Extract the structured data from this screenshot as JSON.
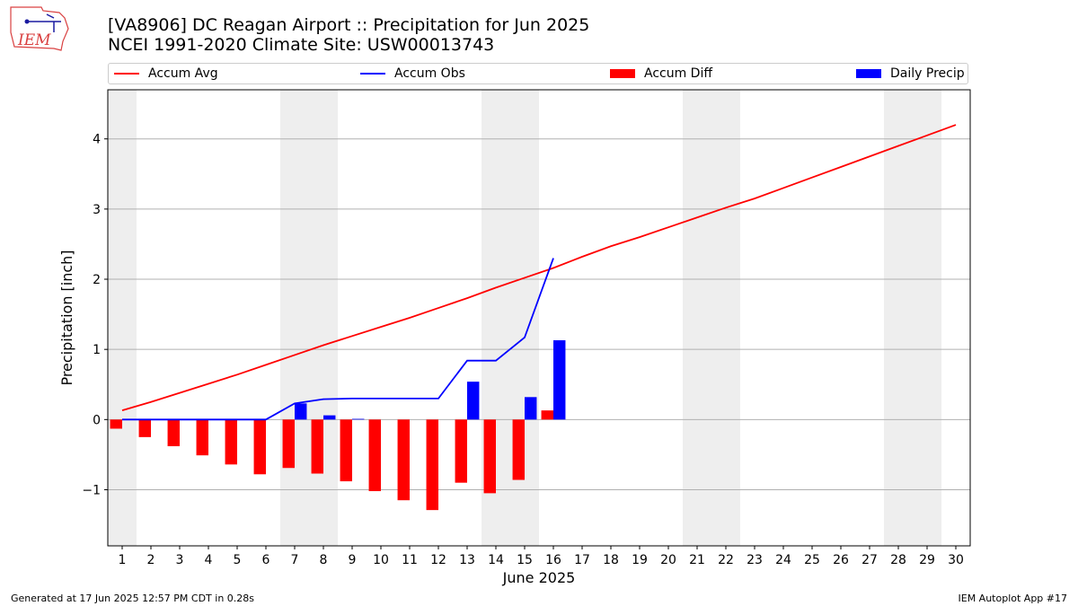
{
  "header": {
    "title_line1": "[VA8906] DC Reagan Airport :: Precipitation for Jun 2025",
    "title_line2": "NCEI 1991-2020 Climate Site: USW00013743",
    "logo_text": "IEM"
  },
  "footer": {
    "generated": "Generated at 17 Jun 2025 12:57 PM CDT in 0.28s",
    "app": "IEM Autoplot App #17"
  },
  "chart_data": {
    "type": "bar",
    "xlabel": "June 2025",
    "ylabel": "Precipitation [inch]",
    "xlim": [
      0.5,
      30.5
    ],
    "ylim": [
      -1.8,
      4.7
    ],
    "yticks": [
      -1,
      0,
      1,
      2,
      3,
      4
    ],
    "ytick_labels": [
      "−1",
      "0",
      "1",
      "2",
      "3",
      "4"
    ],
    "days": [
      1,
      2,
      3,
      4,
      5,
      6,
      7,
      8,
      9,
      10,
      11,
      12,
      13,
      14,
      15,
      16,
      17,
      18,
      19,
      20,
      21,
      22,
      23,
      24,
      25,
      26,
      27,
      28,
      29,
      30
    ],
    "weekend_shading": [
      [
        0.5,
        1.5
      ],
      [
        6.5,
        8.5
      ],
      [
        13.5,
        15.5
      ],
      [
        20.5,
        22.5
      ],
      [
        27.5,
        29.5
      ]
    ],
    "grid": "horizontal",
    "legend_placement": "top",
    "series": [
      {
        "name": "Accum Avg",
        "kind": "line",
        "color": "#ff0000",
        "x": [
          1,
          2,
          3,
          4,
          5,
          6,
          7,
          8,
          9,
          10,
          11,
          12,
          13,
          14,
          15,
          16,
          17,
          18,
          19,
          20,
          21,
          22,
          23,
          24,
          25,
          26,
          27,
          28,
          29,
          30
        ],
        "values": [
          0.13,
          0.25,
          0.38,
          0.51,
          0.64,
          0.78,
          0.92,
          1.06,
          1.19,
          1.32,
          1.45,
          1.59,
          1.73,
          1.88,
          2.02,
          2.16,
          2.32,
          2.47,
          2.6,
          2.74,
          2.88,
          3.02,
          3.15,
          3.3,
          3.45,
          3.6,
          3.75,
          3.9,
          4.05,
          4.2
        ]
      },
      {
        "name": "Accum Obs",
        "kind": "line",
        "color": "#0000ff",
        "x": [
          1,
          2,
          3,
          4,
          5,
          6,
          7,
          8,
          9,
          10,
          11,
          12,
          13,
          14,
          15,
          16
        ],
        "values": [
          0,
          0,
          0,
          0,
          0,
          0,
          0.23,
          0.29,
          0.3,
          0.3,
          0.3,
          0.3,
          0.84,
          0.84,
          1.17,
          2.3
        ]
      },
      {
        "name": "Accum Diff",
        "kind": "bar",
        "color": "#ff0000",
        "x": [
          1,
          2,
          3,
          4,
          5,
          6,
          7,
          8,
          9,
          10,
          11,
          12,
          13,
          14,
          15,
          16
        ],
        "values": [
          -0.13,
          -0.25,
          -0.38,
          -0.51,
          -0.64,
          -0.78,
          -0.69,
          -0.77,
          -0.88,
          -1.02,
          -1.15,
          -1.29,
          -0.9,
          -1.05,
          -0.86,
          0.13
        ]
      },
      {
        "name": "Daily Precip",
        "kind": "bar",
        "color": "#0000ff",
        "x": [
          1,
          2,
          3,
          4,
          5,
          6,
          7,
          8,
          9,
          10,
          11,
          12,
          13,
          14,
          15,
          16
        ],
        "values": [
          0,
          0,
          0,
          0,
          0,
          0,
          0.23,
          0.06,
          0.01,
          0,
          0,
          0,
          0.54,
          0,
          0.32,
          1.13
        ]
      }
    ]
  }
}
